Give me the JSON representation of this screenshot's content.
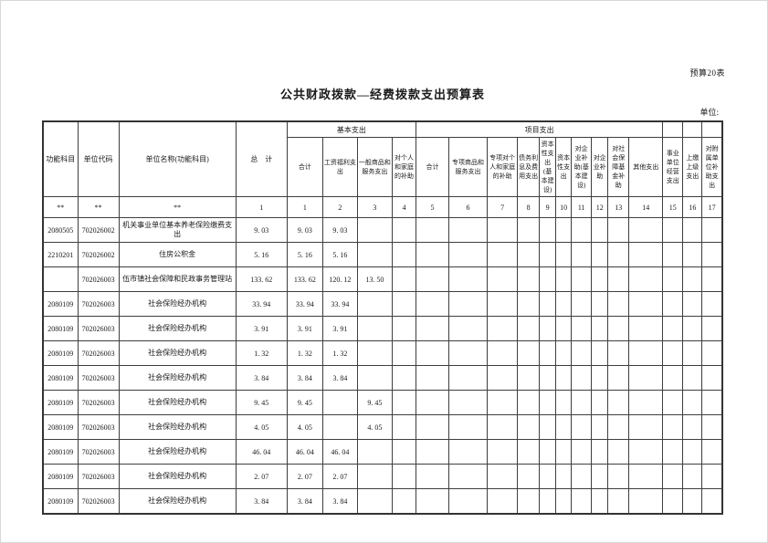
{
  "page": {
    "form_label": "预算20表",
    "title": "公共财政拨款—经费拨款支出预算表",
    "unit_label": "单位:"
  },
  "table": {
    "header": {
      "func_subject": "功能科目",
      "unit_code": "单位代码",
      "unit_name": "单位名称(功能科目)",
      "total": "总　计",
      "basic_group": "基本支出",
      "project_group": "项目支出",
      "sub_cols": [
        "合计",
        "工资福利支出",
        "一般商品和服务支出",
        "对个人和家庭的补助",
        "合计",
        "专项商品和服务支出",
        "专项对个人和家庭的补助",
        "债务利息及费用支出",
        "资本性支出(基本建设)",
        "资本性支出",
        "对企业补助(基本建设)",
        "对企业补助",
        "对社会保障基金补助",
        "其他支出",
        "事业单位经营支出",
        "上缴上级支出",
        "对附属单位补助支出"
      ]
    },
    "index_row": [
      "**",
      "**",
      "**",
      "1",
      "1",
      "2",
      "3",
      "4",
      "5",
      "6",
      "7",
      "8",
      "9",
      "10",
      "11",
      "12",
      "13",
      "14",
      "15",
      "16",
      "17"
    ],
    "rows": [
      {
        "func": "2080505",
        "code": "702026002",
        "name": "机关事业单位基本养老保险缴费支出",
        "values": [
          "9. 03",
          "9. 03",
          "9. 03",
          "",
          ""
        ]
      },
      {
        "func": "2210201",
        "code": "702026002",
        "name": "住房公积金",
        "values": [
          "5. 16",
          "5. 16",
          "5. 16",
          "",
          ""
        ]
      },
      {
        "func": "",
        "code": "702026003",
        "name": "伍市镇社会保障和民政事务管理站",
        "values": [
          "133. 62",
          "133. 62",
          "120. 12",
          "13. 50",
          ""
        ]
      },
      {
        "func": "2080109",
        "code": "702026003",
        "name": "社会保险经办机构",
        "values": [
          "33. 94",
          "33. 94",
          "33. 94",
          "",
          ""
        ]
      },
      {
        "func": "2080109",
        "code": "702026003",
        "name": "社会保险经办机构",
        "values": [
          "3. 91",
          "3. 91",
          "3. 91",
          "",
          ""
        ]
      },
      {
        "func": "2080109",
        "code": "702026003",
        "name": "社会保险经办机构",
        "values": [
          "1. 32",
          "1. 32",
          "1. 32",
          "",
          ""
        ]
      },
      {
        "func": "2080109",
        "code": "702026003",
        "name": "社会保险经办机构",
        "values": [
          "3. 84",
          "3. 84",
          "3. 84",
          "",
          ""
        ]
      },
      {
        "func": "2080109",
        "code": "702026003",
        "name": "社会保险经办机构",
        "values": [
          "9. 45",
          "9. 45",
          "",
          "9. 45",
          ""
        ]
      },
      {
        "func": "2080109",
        "code": "702026003",
        "name": "社会保险经办机构",
        "values": [
          "4. 05",
          "4. 05",
          "",
          "4. 05",
          ""
        ]
      },
      {
        "func": "2080109",
        "code": "702026003",
        "name": "社会保险经办机构",
        "values": [
          "46. 04",
          "46. 04",
          "46. 04",
          "",
          ""
        ]
      },
      {
        "func": "2080109",
        "code": "702026003",
        "name": "社会保险经办机构",
        "values": [
          "2. 07",
          "2. 07",
          "2. 07",
          "",
          ""
        ]
      },
      {
        "func": "2080109",
        "code": "702026003",
        "name": "社会保险经办机构",
        "values": [
          "3. 84",
          "3. 84",
          "3. 84",
          "",
          ""
        ]
      }
    ]
  }
}
